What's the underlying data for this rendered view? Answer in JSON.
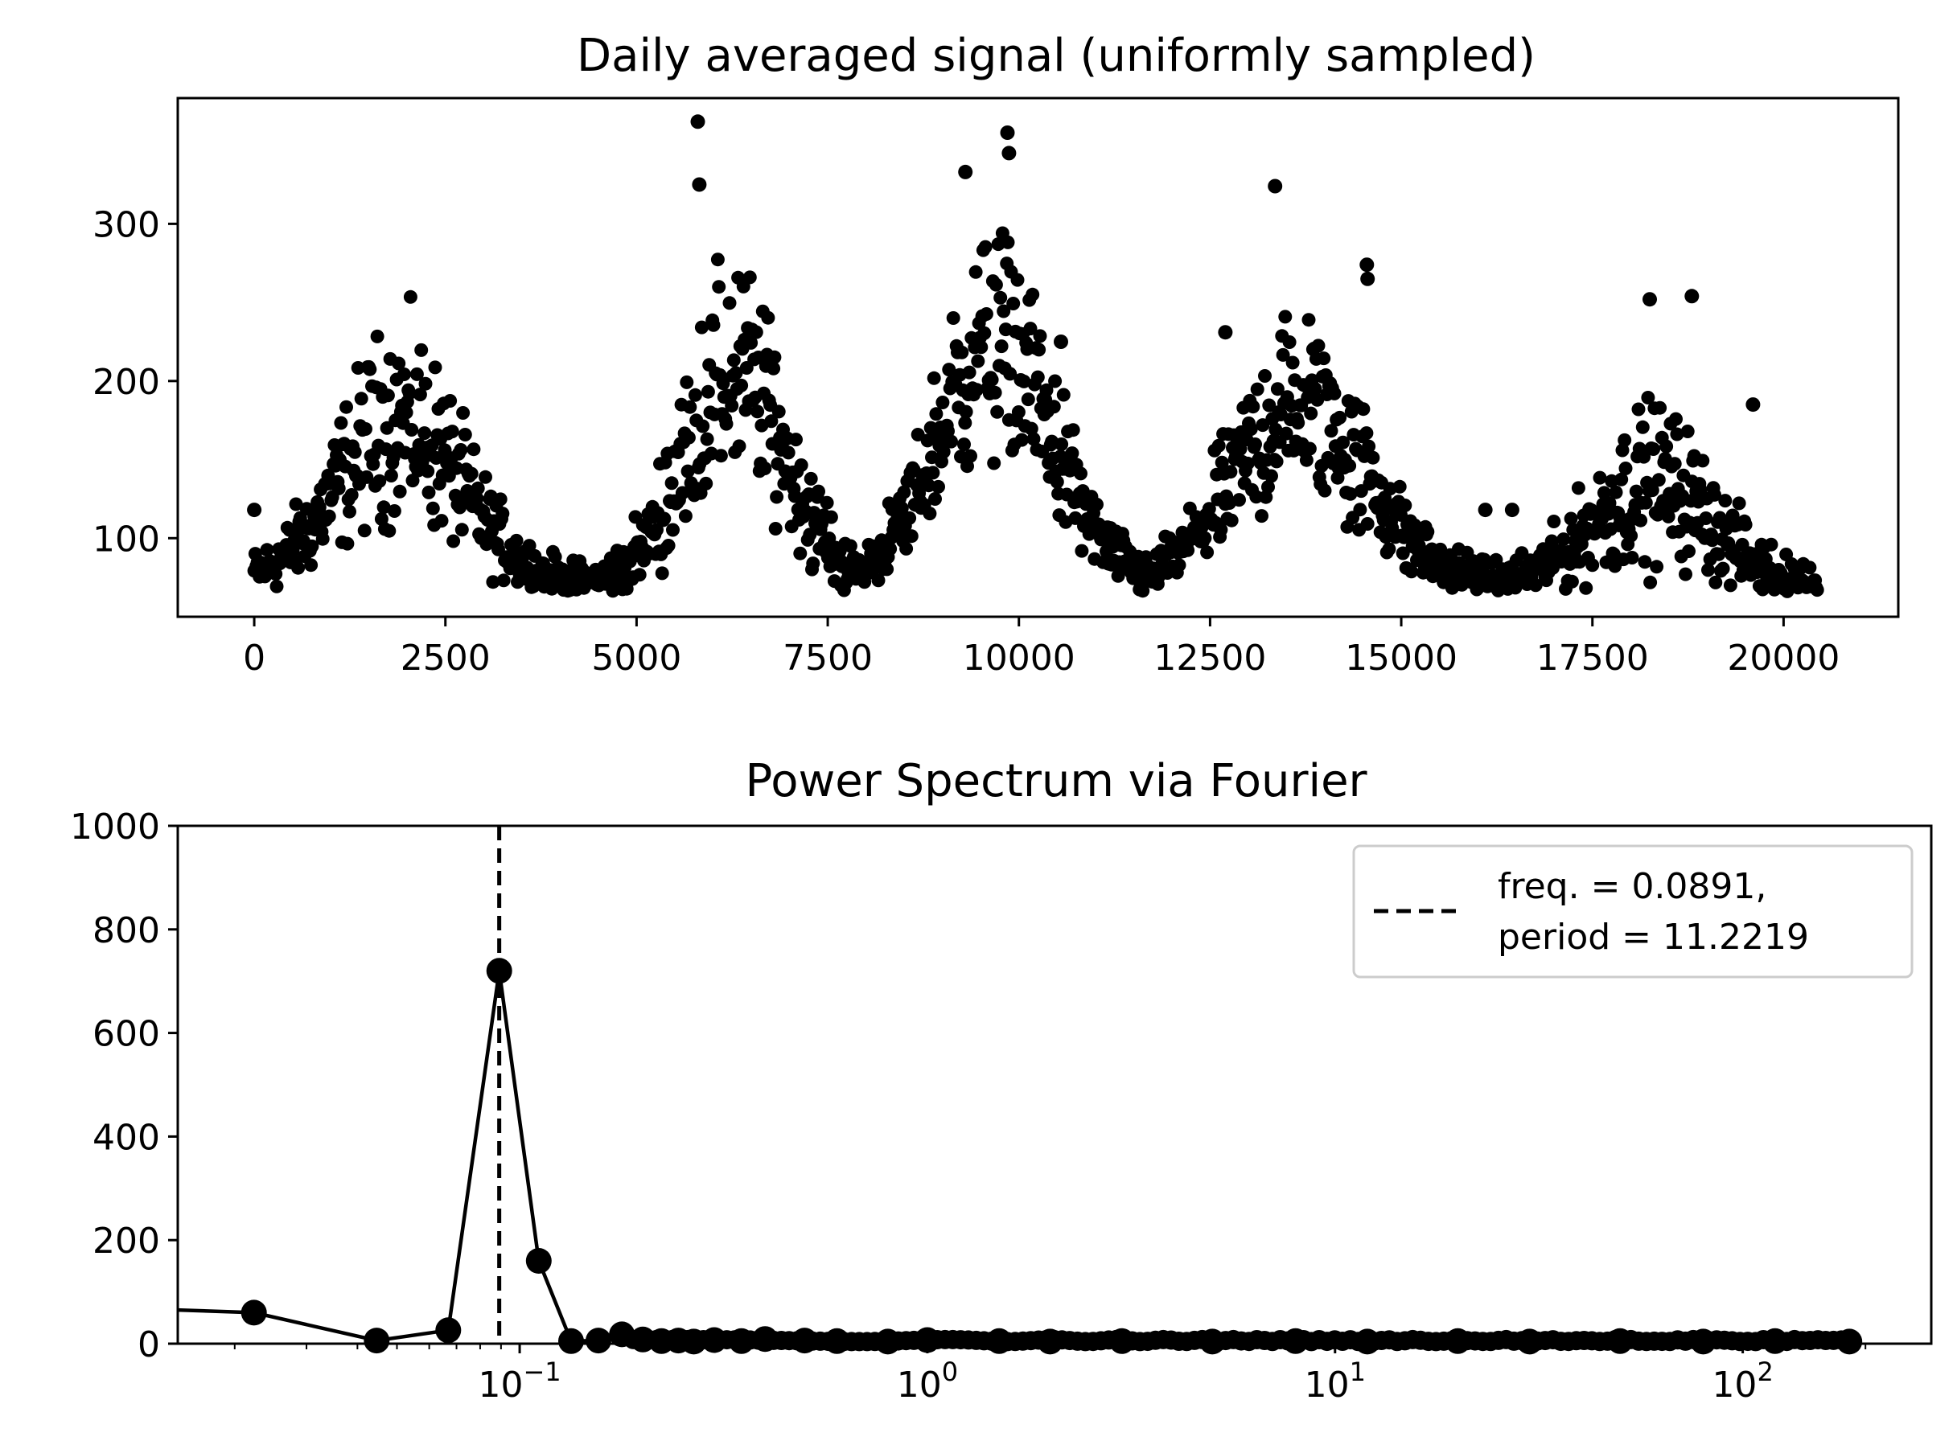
{
  "chart_data": [
    {
      "type": "scatter",
      "title": "Daily averaged signal (uniformly sampled)",
      "xlabel": "",
      "ylabel": "",
      "xlim": [
        -1000,
        21500
      ],
      "ylim": [
        50,
        380
      ],
      "xticks": [
        0,
        2500,
        5000,
        7500,
        10000,
        12500,
        15000,
        17500,
        20000
      ],
      "xtick_labels": [
        "0",
        "2500",
        "5000",
        "7500",
        "10000",
        "12500",
        "15000",
        "17500",
        "20000"
      ],
      "yticks": [
        100,
        200,
        300
      ],
      "ytick_labels": [
        "100",
        "200",
        "300"
      ],
      "color": "#000000",
      "x_range": [
        0,
        20450
      ],
      "cycles": [
        {
          "start": 0,
          "end": 4300,
          "peak_x": 1900,
          "mean_peak": 175,
          "spread": 45
        },
        {
          "start": 4300,
          "end": 7800,
          "peak_x": 6300,
          "mean_peak": 205,
          "spread": 55
        },
        {
          "start": 7800,
          "end": 11800,
          "peak_x": 9700,
          "mean_peak": 225,
          "spread": 55
        },
        {
          "start": 11800,
          "end": 16400,
          "peak_x": 13700,
          "mean_peak": 185,
          "spread": 45
        },
        {
          "start": 16400,
          "end": 20450,
          "peak_x": 18300,
          "mean_peak": 135,
          "spread": 35
        }
      ],
      "baseline": 72,
      "outliers": [
        {
          "x": 0,
          "y": 118
        },
        {
          "x": 5800,
          "y": 365
        },
        {
          "x": 5820,
          "y": 325
        },
        {
          "x": 9850,
          "y": 358
        },
        {
          "x": 9870,
          "y": 345
        },
        {
          "x": 9300,
          "y": 333
        },
        {
          "x": 13350,
          "y": 324
        },
        {
          "x": 10550,
          "y": 225
        },
        {
          "x": 16100,
          "y": 118
        },
        {
          "x": 16450,
          "y": 118
        },
        {
          "x": 18250,
          "y": 252
        },
        {
          "x": 18800,
          "y": 254
        },
        {
          "x": 19600,
          "y": 185
        },
        {
          "x": 12700,
          "y": 231
        },
        {
          "x": 14550,
          "y": 274
        },
        {
          "x": 14560,
          "y": 265
        }
      ]
    },
    {
      "type": "line",
      "title": "Power Spectrum via Fourier",
      "xlabel": "",
      "ylabel": "",
      "xscale": "log",
      "xlim": [
        0.0145,
        290
      ],
      "ylim": [
        0,
        1000
      ],
      "yticks": [
        0,
        200,
        400,
        600,
        800,
        1000
      ],
      "ytick_labels": [
        "0",
        "200",
        "400",
        "600",
        "800",
        "1000"
      ],
      "xticks": [
        0.1,
        1,
        10,
        100
      ],
      "xtick_exponents": [
        "−1",
        "0",
        "1",
        "2"
      ],
      "xtick_base": "10",
      "color": "#000000",
      "x": [
        0.0,
        0.0223,
        0.0446,
        0.0668,
        0.0891,
        0.1114,
        0.1337,
        0.156,
        0.1782,
        0.2005,
        0.2228,
        0.2451,
        0.2673,
        0.3,
        0.35,
        0.4,
        0.5,
        0.6,
        0.8,
        1.0,
        1.5,
        2.0,
        3.0,
        5.0,
        8.0,
        12.0,
        20.0,
        30.0,
        50.0,
        80.0,
        120.0,
        182.6
      ],
      "y": [
        65,
        60,
        6,
        26,
        720,
        160,
        5,
        6,
        18,
        8,
        5,
        6,
        4,
        7,
        5,
        9,
        6,
        5,
        4,
        7,
        5,
        4,
        5,
        4,
        5,
        4,
        5,
        4,
        5,
        4,
        5,
        4
      ],
      "marker_size": 12,
      "vline": {
        "x": 0.0891,
        "style": "dashed"
      },
      "legend": {
        "placement": "top-right",
        "entries": [
          {
            "line1": "freq. = 0.0891,",
            "line2": "period = 11.2219"
          }
        ]
      }
    }
  ]
}
